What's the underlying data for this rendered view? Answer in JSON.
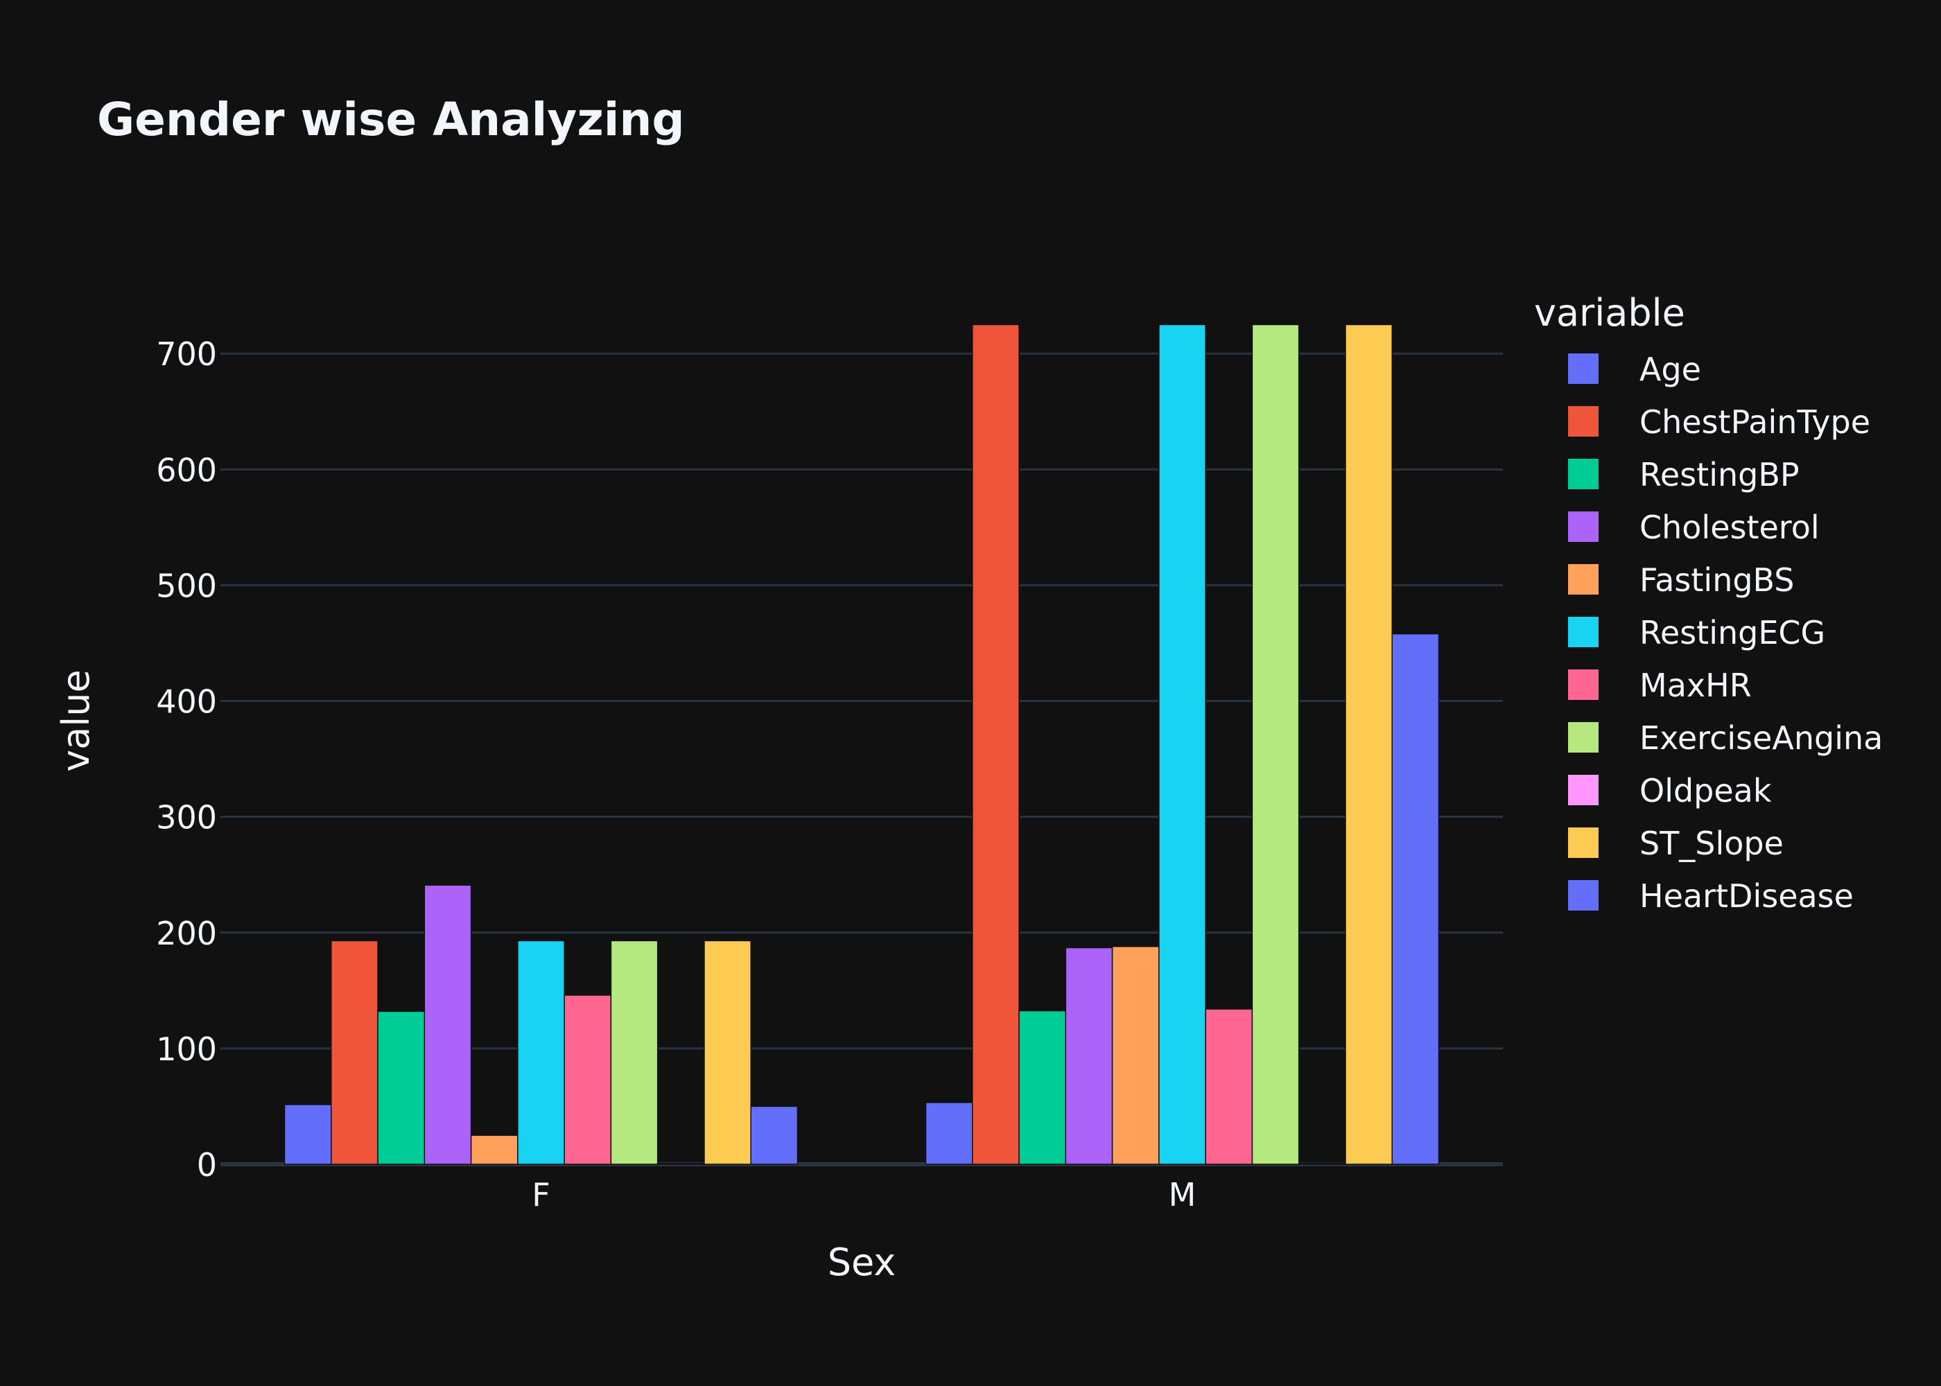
{
  "chart_data": {
    "type": "bar",
    "barmode": "group",
    "title": "Gender wise Analyzing",
    "xlabel": "Sex",
    "ylabel": "value",
    "categories": [
      "F",
      "M"
    ],
    "ylim": [
      0,
      748
    ],
    "yticks": [
      0,
      100,
      200,
      300,
      400,
      500,
      600,
      700
    ],
    "grid": true,
    "legend_title": "variable",
    "legend_position": "right",
    "background": "#111111",
    "grid_color": "#283442",
    "series": [
      {
        "name": "Age",
        "color": "#636efa",
        "values": [
          51.5,
          53.3
        ]
      },
      {
        "name": "ChestPainType",
        "color": "#ef553b",
        "values": [
          193,
          725
        ]
      },
      {
        "name": "RestingBP",
        "color": "#00cc96",
        "values": [
          132,
          132.5
        ]
      },
      {
        "name": "Cholesterol",
        "color": "#ab63fa",
        "values": [
          241,
          187
        ]
      },
      {
        "name": "FastingBS",
        "color": "#ffa15a",
        "values": [
          25,
          188
        ]
      },
      {
        "name": "RestingECG",
        "color": "#19d3f3",
        "values": [
          193,
          725
        ]
      },
      {
        "name": "MaxHR",
        "color": "#ff6692",
        "values": [
          146,
          134
        ]
      },
      {
        "name": "ExerciseAngina",
        "color": "#b6e880",
        "values": [
          193,
          725
        ]
      },
      {
        "name": "Oldpeak",
        "color": "#ff97ff",
        "values": [
          0.7,
          0.9
        ]
      },
      {
        "name": "ST_Slope",
        "color": "#fecb52",
        "values": [
          193,
          725
        ]
      },
      {
        "name": "HeartDisease",
        "color": "#636efa",
        "values": [
          50,
          458
        ]
      }
    ]
  }
}
